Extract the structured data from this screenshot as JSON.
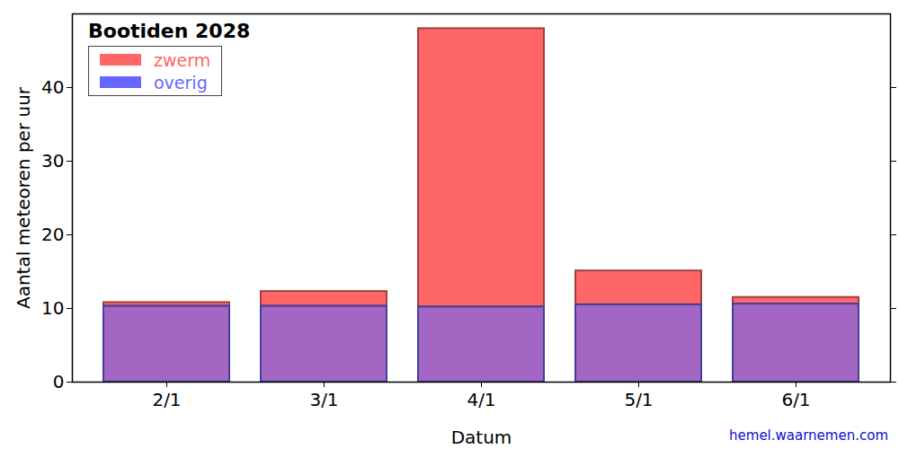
{
  "chart_data": {
    "type": "bar",
    "title": "Bootiden 2028",
    "x_label": "Datum",
    "y_label": "Aantal meteoren per uur",
    "caption": "hemel.waarnemen.com",
    "categories": [
      "2/1",
      "3/1",
      "4/1",
      "5/1",
      "6/1"
    ],
    "series": [
      {
        "name": "zwerm",
        "color": "#ff6666",
        "values": [
          0.5,
          2.0,
          37.8,
          4.6,
          0.9
        ]
      },
      {
        "name": "overig",
        "color": "#6666ff",
        "values": [
          10.3,
          10.3,
          10.2,
          10.5,
          10.6
        ]
      }
    ],
    "stacked": true,
    "legend": "top-left",
    "grid": false,
    "ylim": [
      0,
      50
    ],
    "yticks": [
      0,
      10,
      20,
      30,
      40
    ]
  }
}
